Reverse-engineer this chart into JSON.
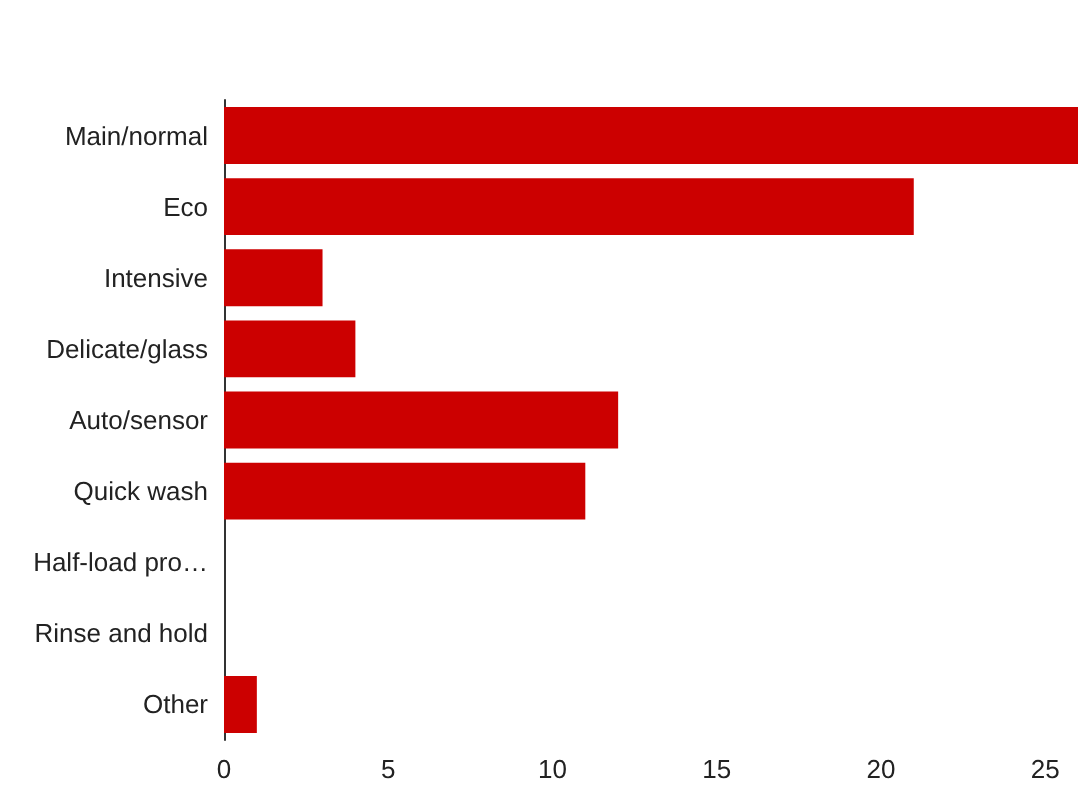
{
  "chart_data": {
    "type": "bar",
    "orientation": "horizontal",
    "categories": [
      "Main/normal",
      "Eco",
      "Intensive",
      "Delicate/glass",
      "Auto/sensor",
      "Quick wash",
      "Half-load pro…",
      "Rinse and hold",
      "Other"
    ],
    "values": [
      26,
      21,
      3,
      4,
      12,
      11,
      0,
      0,
      1
    ],
    "color": "#cc0000",
    "xlim": [
      0,
      26
    ],
    "xticks": [
      0,
      5,
      10,
      15,
      20,
      25
    ],
    "grid": false
  }
}
